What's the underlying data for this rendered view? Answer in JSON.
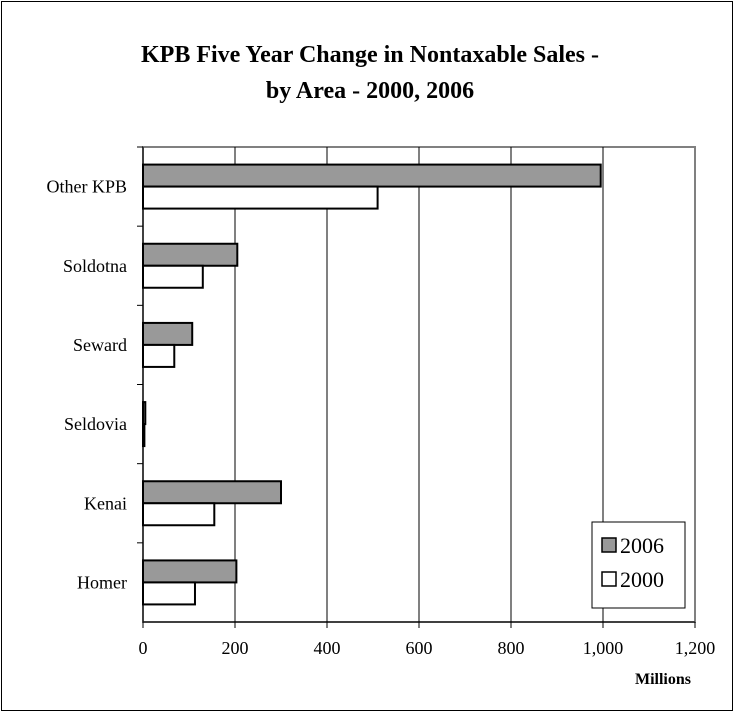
{
  "chart_data": {
    "type": "bar",
    "orientation": "horizontal",
    "title_lines": [
      "KPB Five Year Change in Nontaxable Sales -",
      "by Area - 2000, 2006"
    ],
    "categories": [
      "Other KPB",
      "Soldotna",
      "Seward",
      "Seldovia",
      "Kenai",
      "Homer"
    ],
    "series": [
      {
        "name": "2006",
        "values": [
          995,
          205,
          107,
          5,
          300,
          203
        ],
        "color": "#999999"
      },
      {
        "name": "2000",
        "values": [
          510,
          130,
          68,
          3,
          155,
          113
        ],
        "color": "#ffffff"
      }
    ],
    "xlabel": "",
    "ylabel": "",
    "unit_label": "Millions",
    "xlim": [
      0,
      1200
    ],
    "x_ticks": [
      0,
      200,
      400,
      600,
      800,
      1000,
      1200
    ],
    "x_tick_labels": [
      "0",
      "200",
      "400",
      "600",
      "800",
      "1,000",
      "1,200"
    ],
    "grid": true,
    "legend_position": "bottom-right"
  }
}
